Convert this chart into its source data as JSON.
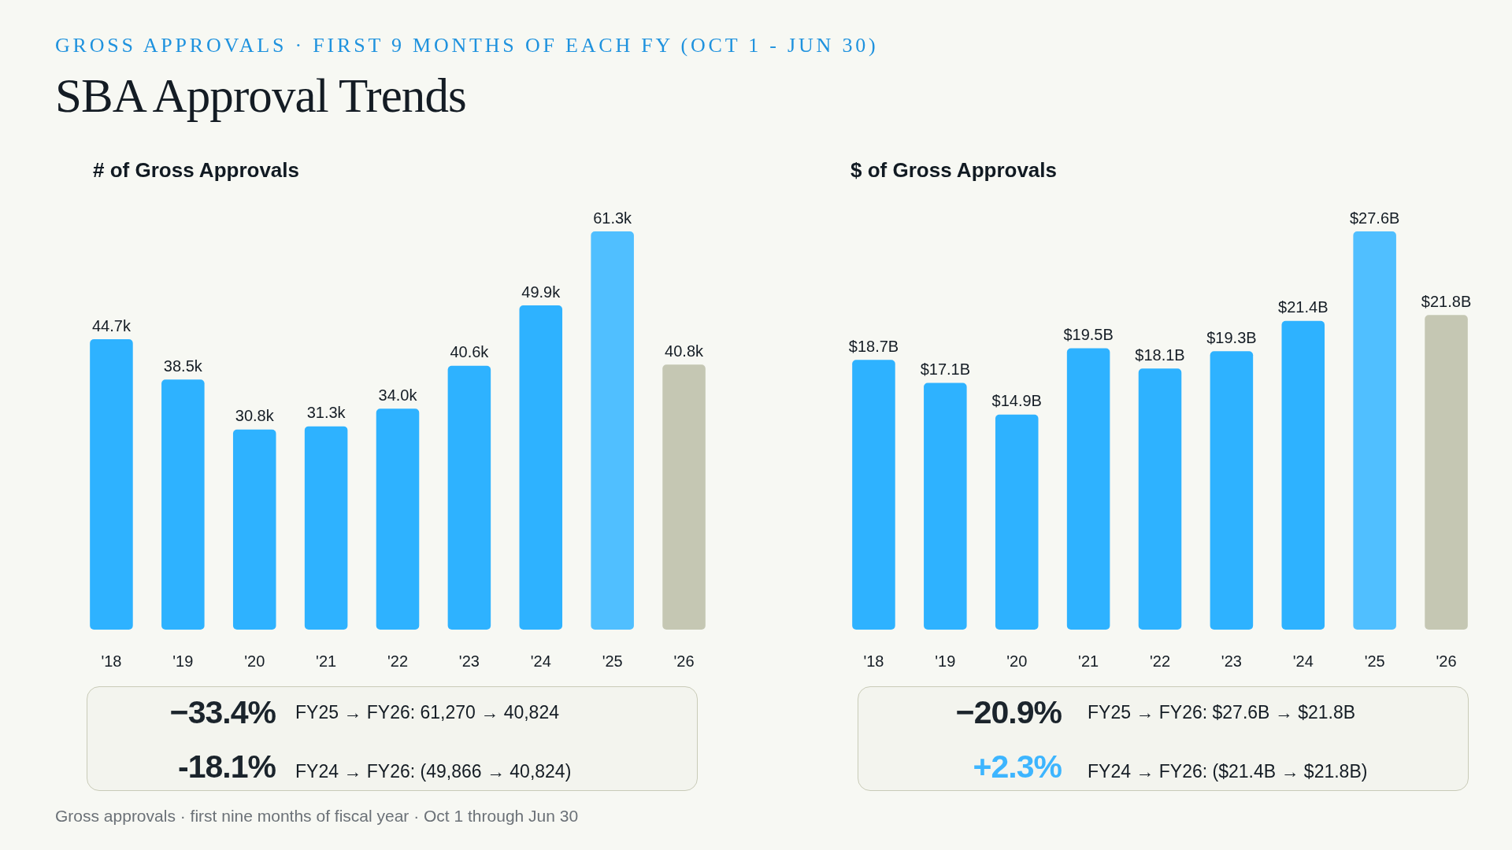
{
  "chart_data": [
    {
      "type": "other",
      "subtitle": "GROSS APPROVALS · FIRST 9 MONTHS OF EACH FY (OCT 1 - JUN 30)",
      "title": "SBA Approval Trends"
    },
    {
      "type": "bar",
      "title": "# of Gross Approvals",
      "categories": [
        "'18",
        "'19",
        "'20",
        "'21",
        "'22",
        "'23",
        "'24",
        "'25",
        "'26"
      ],
      "values": [
        44.7,
        38.5,
        30.8,
        31.3,
        34.0,
        40.6,
        49.9,
        61.3,
        40.8
      ],
      "value_labels": [
        "44.7k",
        "38.5k",
        "30.8k",
        "31.3k",
        "34.0k",
        "40.6k",
        "49.9k",
        "61.3k",
        "40.8k"
      ],
      "colors": [
        "#2eb2ff",
        "#2eb2ff",
        "#2eb2ff",
        "#2eb2ff",
        "#2eb2ff",
        "#2eb2ff",
        "#2eb2ff",
        "#50bfff",
        "#c5c7b3"
      ],
      "tick_labels": "x",
      "annotations": [
        "−33.4%",
        "FY25 → FY26: 61,270 → 40,824",
        "-18.1%",
        "FY24 → FY26: (49,866 → 40,824)"
      ]
    },
    {
      "type": "bar",
      "title": "$ of Gross Approvals",
      "categories": [
        "'18",
        "'19",
        "'20",
        "'21",
        "'22",
        "'23",
        "'24",
        "'25",
        "'26"
      ],
      "values": [
        18.7,
        17.1,
        14.9,
        19.5,
        18.1,
        19.3,
        21.4,
        27.6,
        21.8
      ],
      "value_labels": [
        "$18.7B",
        "$17.1B",
        "$14.9B",
        "$19.5B",
        "$18.1B",
        "$19.3B",
        "$21.4B",
        "$27.6B",
        "$21.8B"
      ],
      "colors": [
        "#2eb2ff",
        "#2eb2ff",
        "#2eb2ff",
        "#2eb2ff",
        "#2eb2ff",
        "#2eb2ff",
        "#2eb2ff",
        "#50bfff",
        "#c5c7b3"
      ],
      "tick_labels": "x",
      "annotations": [
        "−20.9%",
        "FY25 → FY26: $27.6B → $21.8B",
        "+2.3%",
        "FY24 → FY26: ($21.4B → $21.8B)"
      ]
    },
    {
      "type": "other",
      "annotations": [
        "Gross approvals · first nine months of fiscal year · Oct 1 through Jun 30"
      ]
    }
  ]
}
